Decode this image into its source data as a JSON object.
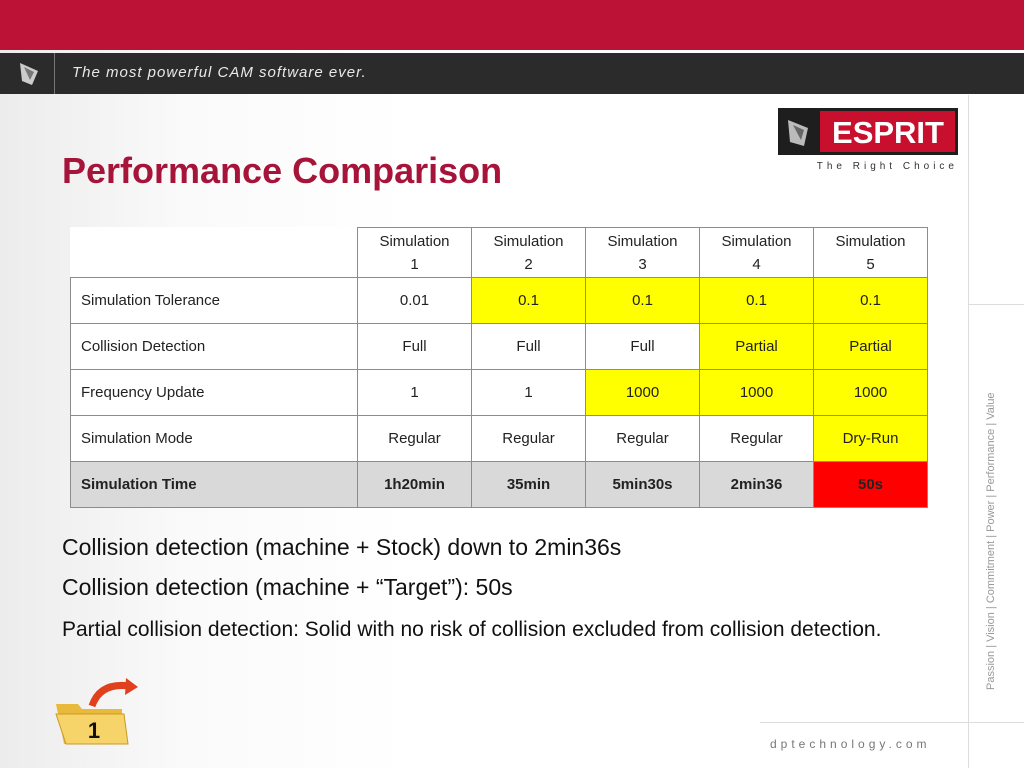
{
  "header": {
    "tagline": "The most powerful CAM software ever."
  },
  "logo": {
    "name": "ESPRIT",
    "slogan": "The Right Choice"
  },
  "title": "Performance Comparison",
  "table": {
    "columns": [
      "Simulation 1",
      "Simulation 2",
      "Simulation 3",
      "Simulation 4",
      "Simulation 5"
    ],
    "rows": [
      [
        "Simulation Tolerance",
        "0.01",
        "0.1",
        "0.1",
        "0.1",
        "0.1"
      ],
      [
        "Collision Detection",
        "Full",
        "Full",
        "Full",
        "Partial",
        "Partial"
      ],
      [
        "Frequency Update",
        "1",
        "1",
        "1000",
        "1000",
        "1000"
      ],
      [
        "Simulation Mode",
        "Regular",
        "Regular",
        "Regular",
        "Regular",
        "Dry-Run"
      ],
      [
        "Simulation Time",
        "1h20min",
        "35min",
        "5min30s",
        "2min36",
        "50s"
      ]
    ]
  },
  "bullets": [
    "Collision detection (machine + Stock) down to 2min36s",
    "Collision detection (machine + “Target”): 50s",
    "Partial collision detection: Solid with no risk of collision excluded from collision detection."
  ],
  "side_text": "Passion | Vision | Commitment | Power | Performance | Value",
  "footer": "dptechnology.com",
  "icon_number": "1"
}
